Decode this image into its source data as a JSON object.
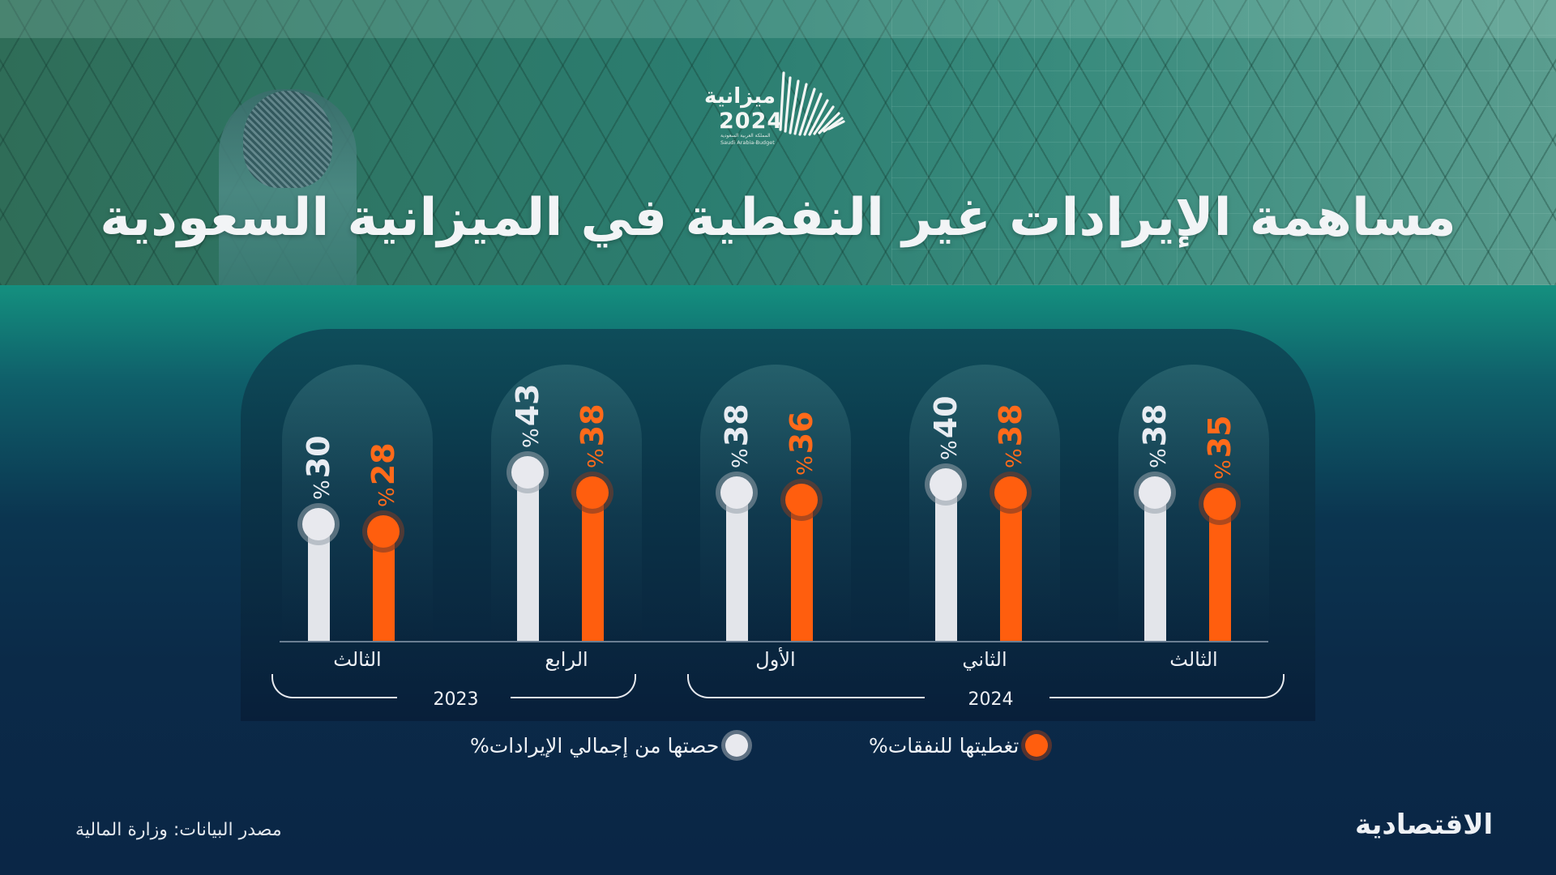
{
  "header": {
    "title": "مساهمة الإيرادات غير النفطية في الميزانية السعودية",
    "logo": {
      "word": "ميزانية",
      "year": "2024",
      "subtitle_ar": "المملكة العربية السعودية",
      "subtitle_en": "Saudi Arabia-Budget"
    }
  },
  "colors": {
    "revenue_share": "#e3e5ea",
    "expense_coverage": "#ff5e0e",
    "background_top": "#14907f",
    "background_bottom": "#0a2646"
  },
  "chart_data": {
    "type": "bar",
    "title": "مساهمة الإيرادات غير النفطية في الميزانية السعودية",
    "xlabel": "",
    "ylabel": "",
    "categories": [
      "الثالث 2023",
      "الرابع 2023",
      "الأول 2024",
      "الثاني 2024",
      "الثالث 2024"
    ],
    "quarters": [
      "الثالث",
      "الرابع",
      "الأول",
      "الثاني",
      "الثالث"
    ],
    "years": [
      {
        "label": "2023",
        "quarters": [
          "الثالث",
          "الرابع"
        ]
      },
      {
        "label": "2024",
        "quarters": [
          "الأول",
          "الثاني",
          "الثالث"
        ]
      }
    ],
    "series": [
      {
        "name": "حصتها من إجمالي الإيرادات%",
        "color": "#e3e5ea",
        "values": [
          30,
          43,
          38,
          40,
          38
        ]
      },
      {
        "name": "تغطيتها للنفقات%",
        "color": "#ff5e0e",
        "values": [
          28,
          38,
          36,
          38,
          35
        ]
      }
    ],
    "value_suffix": "%",
    "grid": false,
    "legend_position": "bottom"
  },
  "legend": {
    "revenue_share": "حصتها من إجمالي الإيرادات%",
    "expense_coverage": "تغطيتها للنفقات%"
  },
  "footer": {
    "source": "مصدر البيانات: وزارة المالية",
    "brand": "الاقتصادية"
  }
}
